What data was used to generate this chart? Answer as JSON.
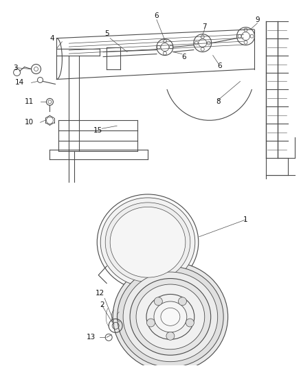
{
  "background_color": "#ffffff",
  "line_color": "#4a4a4a",
  "label_color": "#111111",
  "fig_width": 4.38,
  "fig_height": 5.33,
  "dpi": 100
}
